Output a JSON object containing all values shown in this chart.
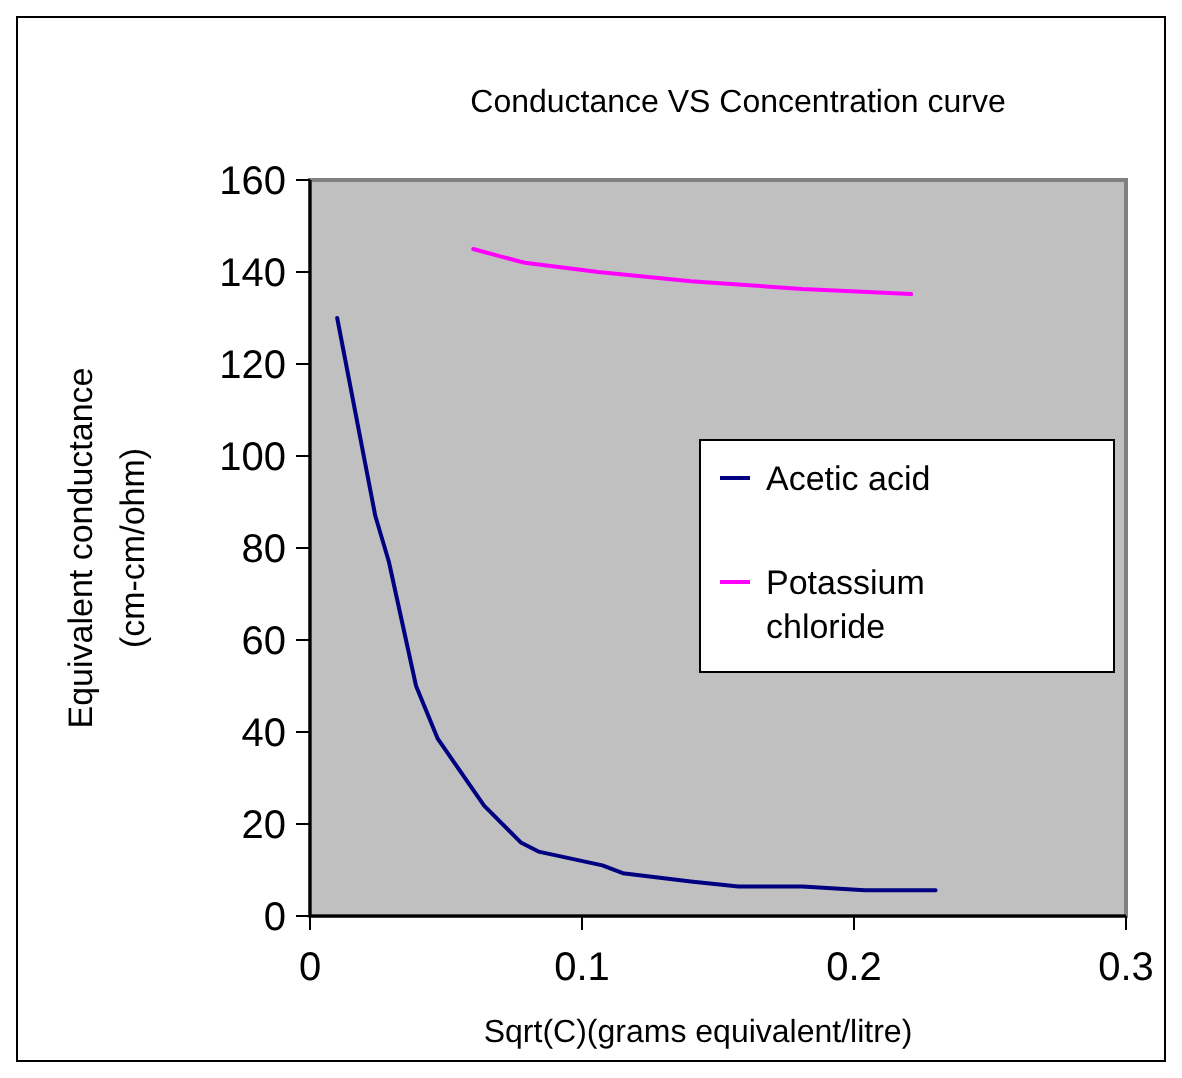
{
  "chart_data": {
    "type": "line",
    "title": "Conductance VS Concentration curve",
    "xlabel": "Sqrt(C)(grams equivalent/litre)",
    "ylabel": "Equivalent conductance (cm-cm/ohm)",
    "xlim": [
      0,
      0.3
    ],
    "xticks": [
      0,
      0.1,
      0.2,
      0.3
    ],
    "ylim": [
      0,
      160
    ],
    "yticks": [
      0,
      20,
      40,
      60,
      80,
      100,
      120,
      140,
      160
    ],
    "grid": false,
    "legend": "right",
    "marker": "none",
    "line_style": "solid",
    "series": [
      {
        "name": "Acetic acid",
        "color": "#000080",
        "x": [
          0.01,
          0.024,
          0.029,
          0.039,
          0.047,
          0.064,
          0.0775,
          0.084,
          0.1075,
          0.115,
          0.14,
          0.1575,
          0.181,
          0.204,
          0.23
        ],
        "values": [
          130,
          87,
          77,
          50,
          38.5,
          24,
          16,
          14,
          11,
          9.3,
          7.5,
          6.4,
          6.4,
          5.6,
          5.6
        ]
      },
      {
        "name": "Potassium chloride",
        "color": "#ff00ff",
        "x": [
          0.06,
          0.07,
          0.079,
          0.106,
          0.14,
          0.181,
          0.221
        ],
        "values": [
          145,
          143.4,
          142,
          140,
          138,
          136.3,
          135.2
        ]
      }
    ]
  }
}
